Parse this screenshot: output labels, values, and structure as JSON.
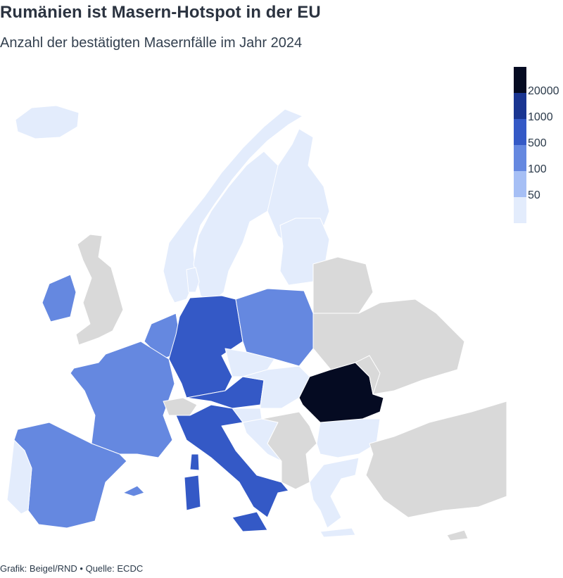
{
  "title": "Rumänien ist Masern-Hotspot in der EU",
  "subtitle": "Anzahl der bestätigten Masernfälle im Jahr 2024",
  "footer": "Grafik: Beigel/RND • Quelle: ECDC",
  "legend": {
    "labels": [
      "20000",
      "1000",
      "500",
      "100",
      "50"
    ],
    "colors": [
      "#050b22",
      "#1a3591",
      "#3459c6",
      "#6588e0",
      "#a6bff5",
      "#e3ecfc"
    ]
  },
  "colors": {
    "non_eu": "#d9d9d9",
    "border": "#ffffff"
  },
  "regions": [
    {
      "name": "Iceland",
      "bin": 0
    },
    {
      "name": "Norway",
      "bin": 0
    },
    {
      "name": "Sweden",
      "bin": 0
    },
    {
      "name": "Finland",
      "bin": 0
    },
    {
      "name": "Baltics",
      "bin": 0
    },
    {
      "name": "Denmark",
      "bin": 0
    },
    {
      "name": "United Kingdom",
      "bin": -1
    },
    {
      "name": "Ireland",
      "bin": 2
    },
    {
      "name": "Benelux",
      "bin": 2
    },
    {
      "name": "France",
      "bin": 2
    },
    {
      "name": "Spain",
      "bin": 2
    },
    {
      "name": "Portugal",
      "bin": 0
    },
    {
      "name": "Germany",
      "bin": 3
    },
    {
      "name": "Poland",
      "bin": 2
    },
    {
      "name": "Czechia",
      "bin": 0
    },
    {
      "name": "Austria",
      "bin": 3
    },
    {
      "name": "Switzerland",
      "bin": -1
    },
    {
      "name": "Slovakia and Hungary",
      "bin": 0
    },
    {
      "name": "Slovenia",
      "bin": 0
    },
    {
      "name": "Italy",
      "bin": 3
    },
    {
      "name": "Sardinia",
      "bin": 3
    },
    {
      "name": "Corsica",
      "bin": 3
    },
    {
      "name": "Sicily",
      "bin": 3
    },
    {
      "name": "Balearics",
      "bin": 2
    },
    {
      "name": "Croatia",
      "bin": 0
    },
    {
      "name": "Balkans non-EU",
      "bin": -1
    },
    {
      "name": "Romania",
      "bin": 5
    },
    {
      "name": "Bulgaria",
      "bin": 0
    },
    {
      "name": "Greece",
      "bin": 0
    },
    {
      "name": "Crete",
      "bin": 0
    },
    {
      "name": "Belarus",
      "bin": -1
    },
    {
      "name": "Ukraine",
      "bin": -1
    },
    {
      "name": "Moldova",
      "bin": -1
    },
    {
      "name": "Turkey",
      "bin": -1
    },
    {
      "name": "Cyprus",
      "bin": -1
    }
  ]
}
